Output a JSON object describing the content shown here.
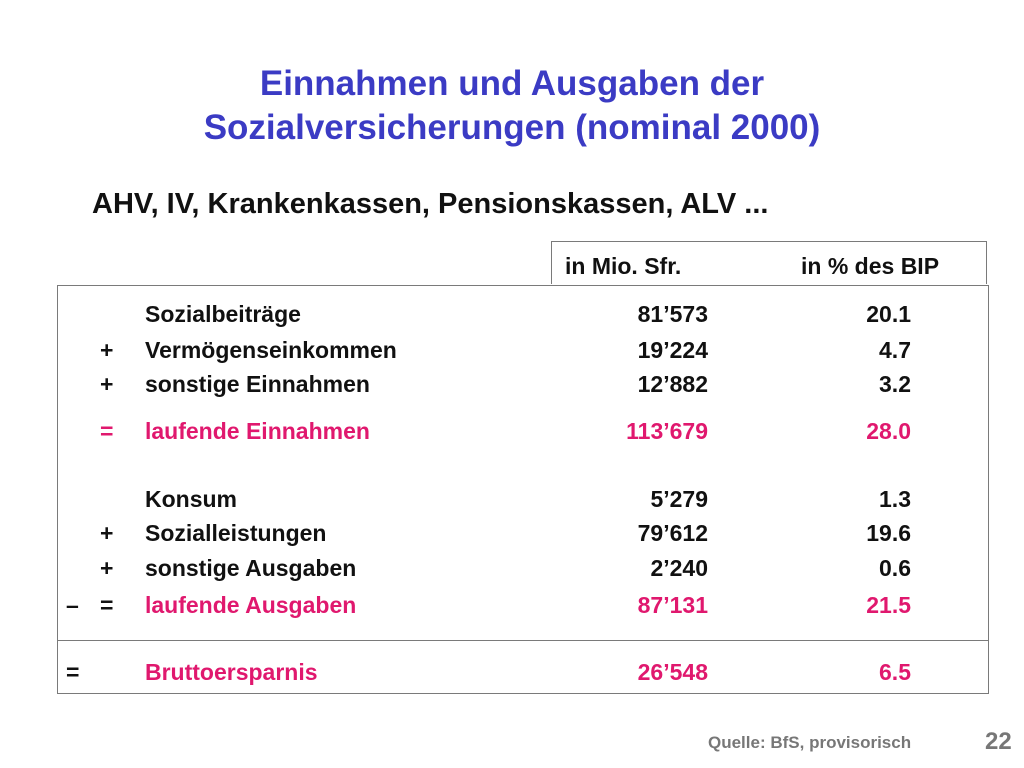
{
  "title": {
    "line1": "Einnahmen und Ausgaben der",
    "line2": "Sozialversicherungen (nominal 2000)"
  },
  "subtitle": "AHV, IV, Krankenkassen, Pensionskassen, ALV ...",
  "headers": {
    "mio": "in Mio. Sfr.",
    "pct": "in % des BIP"
  },
  "rows": [
    {
      "sign": "",
      "label": "Sozialbeiträge",
      "mio": "81’573",
      "pct": "20.1"
    },
    {
      "sign": "+",
      "label": "Vermögenseinkommen",
      "mio": "19’224",
      "pct": "4.7"
    },
    {
      "sign": "+",
      "label": "sonstige Einnahmen",
      "mio": "12’882",
      "pct": "3.2"
    },
    {
      "sign": "=",
      "label": "laufende Einnahmen",
      "mio": "113’679",
      "pct": "28.0"
    },
    {
      "sign": "",
      "label": "Konsum",
      "mio": "5’279",
      "pct": "1.3"
    },
    {
      "sign": "+",
      "label": "Sozialleistungen",
      "mio": "79’612",
      "pct": "19.6"
    },
    {
      "sign": "+",
      "label": "sonstige Ausgaben",
      "mio": "2’240",
      "pct": "0.6"
    },
    {
      "prefix": "–",
      "sign": "=",
      "label": "laufende Ausgaben",
      "mio": "87’131",
      "pct": "21.5"
    },
    {
      "sign": "=",
      "label": "Bruttoersparnis",
      "mio": "26’548",
      "pct": "6.5"
    }
  ],
  "colors": {
    "title": "#3b3bc4",
    "highlight": "#e0186e",
    "text": "#111111",
    "muted": "#777777"
  },
  "source": "Quelle: BfS, provisorisch",
  "page_number": "22"
}
